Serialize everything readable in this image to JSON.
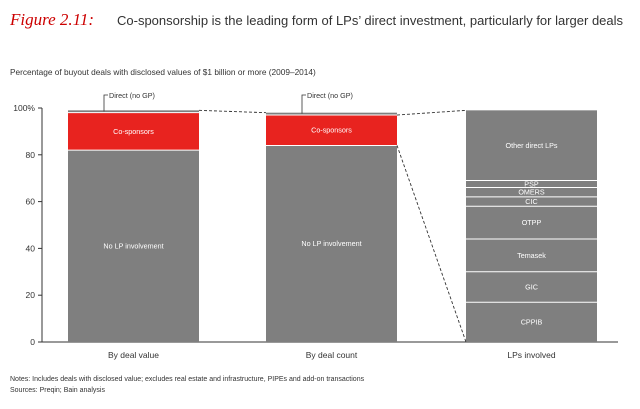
{
  "header": {
    "figure_label": "Figure 2.11:",
    "title": "Co-sponsorship is the leading form of LPs’ direct investment, particularly for larger deals",
    "subtitle": "Percentage of buyout deals with disclosed values of $1 billion or more (2009–2014)"
  },
  "colors": {
    "accent": "#cc0000",
    "bar_gray": "#7f7f7f",
    "co_sponsor_red": "#e8231f",
    "axis": "#333333",
    "text_dark": "#333333",
    "divider_white": "#ffffff"
  },
  "chart_data": {
    "type": "bar",
    "stacked": true,
    "ylim": [
      0,
      100
    ],
    "yticks": [
      {
        "value": 0,
        "label": "0"
      },
      {
        "value": 20,
        "label": "20"
      },
      {
        "value": 40,
        "label": "40"
      },
      {
        "value": 60,
        "label": "60"
      },
      {
        "value": 80,
        "label": "80"
      },
      {
        "value": 100,
        "label": "100%"
      }
    ],
    "grid": false,
    "bars": [
      {
        "category": "By deal value",
        "segments": [
          {
            "name": "No LP involvement",
            "value": 82,
            "color": "#7f7f7f"
          },
          {
            "name": "Co-sponsors",
            "value": 16,
            "color": "#e8231f"
          },
          {
            "name": "Direct (no GP)",
            "value": 1,
            "color": "#7f7f7f"
          }
        ],
        "callout": "Direct (no GP)"
      },
      {
        "category": "By deal count",
        "segments": [
          {
            "name": "No LP involvement",
            "value": 84,
            "color": "#7f7f7f"
          },
          {
            "name": "Co-sponsors",
            "value": 13,
            "color": "#e8231f"
          },
          {
            "name": "Direct (no GP)",
            "value": 1,
            "color": "#7f7f7f"
          }
        ],
        "callout": "Direct (no GP)"
      },
      {
        "category": "LPs involved",
        "segments": [
          {
            "name": "CPPIB",
            "value": 17,
            "color": "#7f7f7f"
          },
          {
            "name": "GIC",
            "value": 13,
            "color": "#7f7f7f"
          },
          {
            "name": "Temasek",
            "value": 14,
            "color": "#7f7f7f"
          },
          {
            "name": "OTPP",
            "value": 14,
            "color": "#7f7f7f"
          },
          {
            "name": "CIC",
            "value": 4,
            "color": "#7f7f7f"
          },
          {
            "name": "OMERS",
            "value": 4,
            "color": "#7f7f7f"
          },
          {
            "name": "PSP",
            "value": 3,
            "color": "#7f7f7f"
          },
          {
            "name": "Other direct LPs",
            "value": 30,
            "color": "#7f7f7f"
          }
        ],
        "callout": ""
      }
    ]
  },
  "footer": {
    "notes": "Notes: Includes deals with disclosed value; excludes real estate and infrastructure, PIPEs and add-on transactions",
    "sources": "Sources: Preqin; Bain analysis"
  }
}
